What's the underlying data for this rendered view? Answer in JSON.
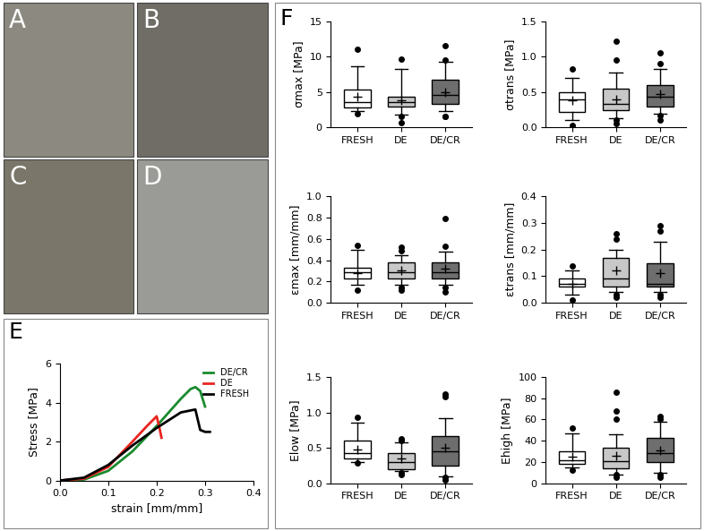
{
  "photo_panels": [
    "A",
    "B",
    "C",
    "D"
  ],
  "box_panel_label": "F",
  "chart_data": [
    {
      "type": "line",
      "panel": "E",
      "xlabel": "strain [mm/mm]",
      "ylabel": "Stress [MPa]",
      "xlim": [
        0,
        0.4
      ],
      "xticks": [
        {
          "value": 0,
          "label": "0.0"
        },
        {
          "value": 0.1,
          "label": "0.1"
        },
        {
          "value": 0.2,
          "label": "0.2"
        },
        {
          "value": 0.3,
          "label": "0.3"
        },
        {
          "value": 0.4,
          "label": "0.4"
        }
      ],
      "ylim": [
        0,
        6
      ],
      "yticks": [
        0,
        2,
        4,
        6
      ],
      "legend": "upper right",
      "series": [
        {
          "name": "DE/CR",
          "color": "#1a8a2e",
          "x": [
            0,
            0.05,
            0.1,
            0.15,
            0.2,
            0.25,
            0.27,
            0.28,
            0.29,
            0.3
          ],
          "values": [
            0,
            0.05,
            0.5,
            1.5,
            2.8,
            4.2,
            4.7,
            4.8,
            4.6,
            3.8
          ]
        },
        {
          "name": "DE",
          "color": "#e8251f",
          "x": [
            0,
            0.05,
            0.1,
            0.15,
            0.18,
            0.2,
            0.205,
            0.21
          ],
          "values": [
            0,
            0.1,
            0.7,
            2.0,
            2.8,
            3.3,
            2.8,
            2.2
          ]
        },
        {
          "name": "FRESH",
          "color": "#000000",
          "x": [
            0,
            0.05,
            0.1,
            0.15,
            0.2,
            0.25,
            0.27,
            0.28,
            0.29,
            0.3,
            0.31
          ],
          "values": [
            0,
            0.15,
            0.8,
            1.8,
            2.7,
            3.5,
            3.6,
            3.65,
            2.6,
            2.5,
            2.5
          ]
        }
      ]
    },
    {
      "type": "box",
      "ylabel": "σmax [MPa]",
      "categories": [
        "FRESH",
        "DE",
        "DE/CR"
      ],
      "colors": [
        "#ffffff",
        "#c8c8c8",
        "#6e6e6e"
      ],
      "ylim": [
        0,
        15
      ],
      "yticks": [
        0,
        5,
        10,
        15
      ],
      "boxes": [
        {
          "whislo": 2.3,
          "q1": 2.8,
          "med": 3.6,
          "q3": 5.3,
          "whishi": 8.7,
          "mean": 4.3,
          "fliers": [
            1.9,
            11.0
          ]
        },
        {
          "whislo": 1.8,
          "q1": 2.9,
          "med": 3.6,
          "q3": 4.3,
          "whishi": 8.2,
          "mean": 3.8,
          "fliers": [
            0.7,
            1.5,
            9.7
          ]
        },
        {
          "whislo": 2.3,
          "q1": 3.3,
          "med": 4.6,
          "q3": 6.7,
          "whishi": 9.3,
          "mean": 5.0,
          "fliers": [
            1.5,
            1.6,
            9.5,
            11.5
          ]
        }
      ]
    },
    {
      "type": "box",
      "ylabel": "σtrans [MPa]",
      "categories": [
        "FRESH",
        "DE",
        "DE/CR"
      ],
      "colors": [
        "#ffffff",
        "#c8c8c8",
        "#6e6e6e"
      ],
      "ylim": [
        0,
        1.5
      ],
      "yticks": [
        {
          "value": 0,
          "label": "0.0"
        },
        {
          "value": 0.5,
          "label": "0.5"
        },
        {
          "value": 1,
          "label": "1.0"
        },
        {
          "value": 1.5,
          "label": "1.5"
        }
      ],
      "boxes": [
        {
          "whislo": 0.1,
          "q1": 0.22,
          "med": 0.4,
          "q3": 0.5,
          "whishi": 0.7,
          "mean": 0.38,
          "fliers": [
            0.03,
            0.82
          ]
        },
        {
          "whislo": 0.13,
          "q1": 0.24,
          "med": 0.33,
          "q3": 0.55,
          "whishi": 0.77,
          "mean": 0.4,
          "fliers": [
            0.05,
            0.1,
            0.95,
            1.22
          ]
        },
        {
          "whislo": 0.2,
          "q1": 0.3,
          "med": 0.44,
          "q3": 0.6,
          "whishi": 0.83,
          "mean": 0.47,
          "fliers": [
            0.1,
            0.17,
            0.9,
            1.05
          ]
        }
      ]
    },
    {
      "type": "box",
      "ylabel": "εmax [mm/mm]",
      "categories": [
        "FRESH",
        "DE",
        "DE/CR"
      ],
      "colors": [
        "#ffffff",
        "#c8c8c8",
        "#6e6e6e"
      ],
      "ylim": [
        0,
        1.0
      ],
      "yticks": [
        {
          "value": 0,
          "label": "0.0"
        },
        {
          "value": 0.2,
          "label": "0.2"
        },
        {
          "value": 0.4,
          "label": "0.4"
        },
        {
          "value": 0.6,
          "label": "0.6"
        },
        {
          "value": 0.8,
          "label": "0.8"
        },
        {
          "value": 1,
          "label": "1.0"
        }
      ],
      "boxes": [
        {
          "whislo": 0.17,
          "q1": 0.23,
          "med": 0.29,
          "q3": 0.33,
          "whishi": 0.5,
          "mean": 0.28,
          "fliers": [
            0.12,
            0.54
          ]
        },
        {
          "whislo": 0.17,
          "q1": 0.23,
          "med": 0.29,
          "q3": 0.38,
          "whishi": 0.45,
          "mean": 0.3,
          "fliers": [
            0.12,
            0.14,
            0.49,
            0.52
          ]
        },
        {
          "whislo": 0.17,
          "q1": 0.23,
          "med": 0.29,
          "q3": 0.38,
          "whishi": 0.48,
          "mean": 0.32,
          "fliers": [
            0.1,
            0.14,
            0.53,
            0.79
          ]
        }
      ]
    },
    {
      "type": "box",
      "ylabel": "εtrans [mm/mm]",
      "categories": [
        "FRESH",
        "DE",
        "DE/CR"
      ],
      "colors": [
        "#ffffff",
        "#c8c8c8",
        "#6e6e6e"
      ],
      "ylim": [
        0,
        0.4
      ],
      "yticks": [
        {
          "value": 0,
          "label": "0.0"
        },
        {
          "value": 0.1,
          "label": "0.1"
        },
        {
          "value": 0.2,
          "label": "0.2"
        },
        {
          "value": 0.3,
          "label": "0.3"
        },
        {
          "value": 0.4,
          "label": "0.4"
        }
      ],
      "boxes": [
        {
          "whislo": 0.03,
          "q1": 0.06,
          "med": 0.07,
          "q3": 0.09,
          "whishi": 0.12,
          "mean": 0.07,
          "fliers": [
            0.01,
            0.14
          ]
        },
        {
          "whislo": 0.04,
          "q1": 0.06,
          "med": 0.09,
          "q3": 0.17,
          "whishi": 0.2,
          "mean": 0.12,
          "fliers": [
            0.02,
            0.03,
            0.24,
            0.26
          ]
        },
        {
          "whislo": 0.04,
          "q1": 0.06,
          "med": 0.07,
          "q3": 0.15,
          "whishi": 0.23,
          "mean": 0.11,
          "fliers": [
            0.02,
            0.03,
            0.27,
            0.29
          ]
        }
      ]
    },
    {
      "type": "box",
      "ylabel": "Elow [MPa]",
      "categories": [
        "FRESH",
        "DE",
        "DE/CR"
      ],
      "colors": [
        "#ffffff",
        "#c8c8c8",
        "#6e6e6e"
      ],
      "ylim": [
        0,
        1.5
      ],
      "yticks": [
        {
          "value": 0,
          "label": "0.0"
        },
        {
          "value": 0.5,
          "label": "0.5"
        },
        {
          "value": 1,
          "label": "1.0"
        },
        {
          "value": 1.5,
          "label": "1.5"
        }
      ],
      "boxes": [
        {
          "whislo": 0.3,
          "q1": 0.35,
          "med": 0.43,
          "q3": 0.6,
          "whishi": 0.85,
          "mean": 0.47,
          "fliers": [
            0.28,
            0.93
          ]
        },
        {
          "whislo": 0.17,
          "q1": 0.2,
          "med": 0.3,
          "q3": 0.42,
          "whishi": 0.58,
          "mean": 0.35,
          "fliers": [
            0.12,
            0.15,
            0.6,
            0.63
          ]
        },
        {
          "whislo": 0.1,
          "q1": 0.25,
          "med": 0.45,
          "q3": 0.67,
          "whishi": 0.92,
          "mean": 0.5,
          "fliers": [
            0.04,
            0.08,
            1.22,
            1.26
          ]
        }
      ]
    },
    {
      "type": "box",
      "ylabel": "Ehigh [MPa]",
      "categories": [
        "FRESH",
        "DE",
        "DE/CR"
      ],
      "colors": [
        "#ffffff",
        "#c8c8c8",
        "#6e6e6e"
      ],
      "ylim": [
        0,
        100
      ],
      "yticks": [
        0,
        20,
        40,
        60,
        80,
        100
      ],
      "boxes": [
        {
          "whislo": 15,
          "q1": 18,
          "med": 22,
          "q3": 30,
          "whishi": 47,
          "mean": 25,
          "fliers": [
            12,
            52
          ]
        },
        {
          "whislo": 8,
          "q1": 14,
          "med": 21,
          "q3": 33,
          "whishi": 46,
          "mean": 26,
          "fliers": [
            6,
            8,
            60,
            68,
            86
          ]
        },
        {
          "whislo": 10,
          "q1": 20,
          "med": 28,
          "q3": 43,
          "whishi": 58,
          "mean": 31,
          "fliers": [
            6,
            8,
            60,
            63
          ]
        }
      ]
    }
  ]
}
